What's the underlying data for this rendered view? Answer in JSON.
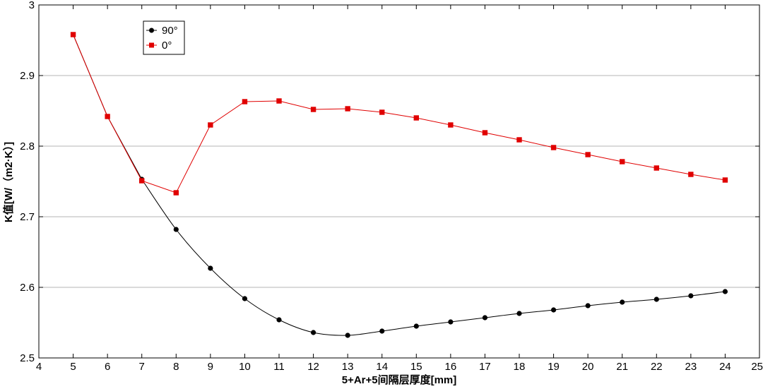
{
  "chart_data": {
    "type": "line",
    "xlabel": "5+Ar+5间隔层厚度[mm]",
    "ylabel": "K值[W/（m2·K）]",
    "xlim": [
      4,
      25
    ],
    "ylim": [
      2.5,
      3.0
    ],
    "xticks": [
      "4",
      "5",
      "6",
      "7",
      "8",
      "9",
      "10",
      "11",
      "12",
      "13",
      "14",
      "15",
      "16",
      "17",
      "18",
      "19",
      "20",
      "21",
      "22",
      "23",
      "24",
      "25"
    ],
    "yticks": [
      "2.5",
      "2.6",
      "2.7",
      "2.8",
      "2.9",
      "3"
    ],
    "grid": "horizontal",
    "legend_position": "top-left",
    "x": [
      5,
      6,
      7,
      8,
      9,
      10,
      11,
      12,
      13,
      14,
      15,
      16,
      17,
      18,
      19,
      20,
      21,
      22,
      23,
      24
    ],
    "series": [
      {
        "name": "90°",
        "color": "#000000",
        "marker": "circle",
        "values": [
          null,
          null,
          2.753,
          2.682,
          2.627,
          2.584,
          2.554,
          2.536,
          2.532,
          2.538,
          2.545,
          2.551,
          2.557,
          2.563,
          2.568,
          2.574,
          2.579,
          2.583,
          2.588,
          2.594
        ]
      },
      {
        "name": "0°",
        "color": "#e00000",
        "marker": "square",
        "values": [
          2.958,
          2.842,
          2.751,
          2.734,
          2.83,
          2.863,
          2.864,
          2.852,
          2.853,
          2.848,
          2.84,
          2.83,
          2.819,
          2.809,
          2.798,
          2.788,
          2.778,
          2.769,
          2.76,
          2.752
        ]
      }
    ]
  }
}
